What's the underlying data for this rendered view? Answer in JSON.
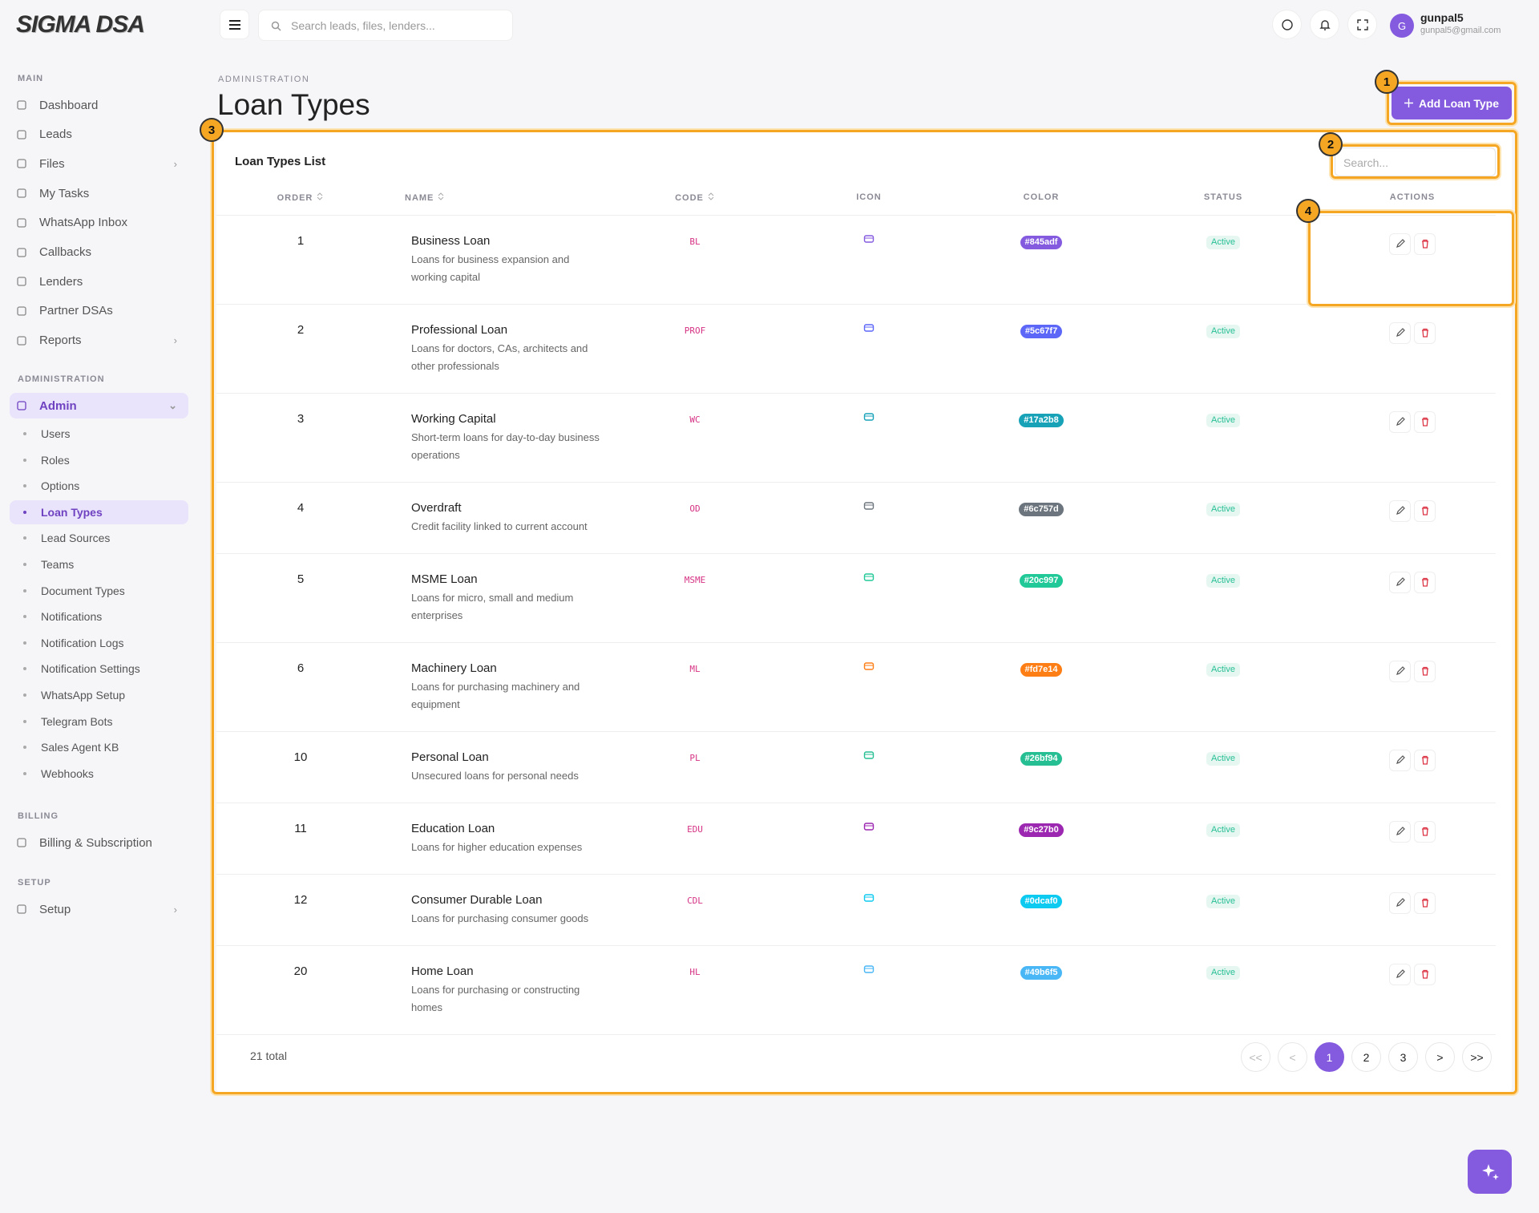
{
  "brand": "SIGMA DSA",
  "topbar": {
    "search_placeholder": "Search leads, files, lenders...",
    "avatar": "G",
    "user_name": "gunpal5",
    "user_email": "gunpal5@gmail.com"
  },
  "sidebar": {
    "sections": [
      {
        "title": "MAIN",
        "items": [
          {
            "label": "Dashboard"
          },
          {
            "label": "Leads"
          },
          {
            "label": "Files",
            "chevron": true
          },
          {
            "label": "My Tasks"
          },
          {
            "label": "WhatsApp Inbox"
          },
          {
            "label": "Callbacks"
          },
          {
            "label": "Lenders"
          },
          {
            "label": "Partner DSAs"
          },
          {
            "label": "Reports",
            "chevron": true
          }
        ]
      },
      {
        "title": "ADMINISTRATION",
        "items": [
          {
            "label": "Admin",
            "active": true,
            "chevron": true,
            "children": [
              {
                "label": "Users"
              },
              {
                "label": "Roles"
              },
              {
                "label": "Options"
              },
              {
                "label": "Loan Types",
                "active": true
              },
              {
                "label": "Lead Sources"
              },
              {
                "label": "Teams"
              },
              {
                "label": "Document Types"
              },
              {
                "label": "Notifications"
              },
              {
                "label": "Notification Logs"
              },
              {
                "label": "Notification Settings"
              },
              {
                "label": "WhatsApp Setup"
              },
              {
                "label": "Telegram Bots"
              },
              {
                "label": "Sales Agent KB"
              },
              {
                "label": "Webhooks"
              }
            ]
          }
        ]
      },
      {
        "title": "BILLING",
        "items": [
          {
            "label": "Billing & Subscription"
          }
        ]
      },
      {
        "title": "SETUP",
        "items": [
          {
            "label": "Setup",
            "chevron": true
          }
        ]
      }
    ]
  },
  "page": {
    "breadcrumb": "ADMINISTRATION",
    "title": "Loan Types",
    "add_button": "Add Loan Type"
  },
  "table": {
    "title": "Loan Types List",
    "search_placeholder": "Search...",
    "columns": [
      {
        "label": "ORDER",
        "sortable": true
      },
      {
        "label": "NAME",
        "sortable": true
      },
      {
        "label": "CODE",
        "sortable": true
      },
      {
        "label": "ICON"
      },
      {
        "label": "COLOR"
      },
      {
        "label": "STATUS"
      },
      {
        "label": "ACTIONS"
      }
    ],
    "rows": [
      {
        "order": 1,
        "name": "Business Loan",
        "description": "Loans for business expansion and working capital",
        "code": "BL",
        "color": "#845adf",
        "status": "Active"
      },
      {
        "order": 2,
        "name": "Professional Loan",
        "description": "Loans for doctors, CAs, architects and other professionals",
        "code": "PROF",
        "color": "#5c67f7",
        "status": "Active"
      },
      {
        "order": 3,
        "name": "Working Capital",
        "description": "Short-term loans for day-to-day business operations",
        "code": "WC",
        "color": "#17a2b8",
        "status": "Active"
      },
      {
        "order": 4,
        "name": "Overdraft",
        "description": "Credit facility linked to current account",
        "code": "OD",
        "color": "#6c757d",
        "status": "Active"
      },
      {
        "order": 5,
        "name": "MSME Loan",
        "description": "Loans for micro, small and medium enterprises",
        "code": "MSME",
        "color": "#20c997",
        "status": "Active"
      },
      {
        "order": 6,
        "name": "Machinery Loan",
        "description": "Loans for purchasing machinery and equipment",
        "code": "ML",
        "color": "#fd7e14",
        "status": "Active"
      },
      {
        "order": 10,
        "name": "Personal Loan",
        "description": "Unsecured loans for personal needs",
        "code": "PL",
        "color": "#26bf94",
        "status": "Active"
      },
      {
        "order": 11,
        "name": "Education Loan",
        "description": "Loans for higher education expenses",
        "code": "EDU",
        "color": "#9c27b0",
        "status": "Active"
      },
      {
        "order": 12,
        "name": "Consumer Durable Loan",
        "description": "Loans for purchasing consumer goods",
        "code": "CDL",
        "color": "#0dcaf0",
        "status": "Active"
      },
      {
        "order": 20,
        "name": "Home Loan",
        "description": "Loans for purchasing or constructing homes",
        "code": "HL",
        "color": "#49b6f5",
        "status": "Active"
      }
    ],
    "total": "21 total",
    "pagination": [
      {
        "label": "<<",
        "disabled": true
      },
      {
        "label": "<",
        "disabled": true
      },
      {
        "label": "1",
        "current": true
      },
      {
        "label": "2"
      },
      {
        "label": "3"
      },
      {
        "label": ">"
      },
      {
        "label": ">>"
      }
    ]
  },
  "annotations": [
    "1",
    "2",
    "3",
    "4"
  ]
}
